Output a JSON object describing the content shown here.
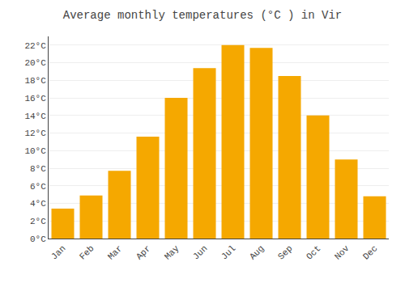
{
  "chart_data": {
    "type": "bar",
    "title": "Average monthly temperatures (°C ) in Vir",
    "categories": [
      "Jan",
      "Feb",
      "Mar",
      "Apr",
      "May",
      "Jun",
      "Jul",
      "Aug",
      "Sep",
      "Oct",
      "Nov",
      "Dec"
    ],
    "values": [
      3.4,
      4.9,
      7.7,
      11.6,
      16.0,
      19.4,
      22.0,
      21.7,
      18.5,
      14.0,
      9.0,
      4.8
    ],
    "color": "#F5A800",
    "ylim": [
      0,
      23
    ],
    "yticks": [
      {
        "value": 0,
        "label": "0°C"
      },
      {
        "value": 2,
        "label": "2°C"
      },
      {
        "value": 4,
        "label": "4°C"
      },
      {
        "value": 6,
        "label": "6°C"
      },
      {
        "value": 8,
        "label": "8°C"
      },
      {
        "value": 10,
        "label": "10°C"
      },
      {
        "value": 12,
        "label": "12°C"
      },
      {
        "value": 14,
        "label": "14°C"
      },
      {
        "value": 16,
        "label": "16°C"
      },
      {
        "value": 18,
        "label": "18°C"
      },
      {
        "value": 20,
        "label": "20°C"
      },
      {
        "value": 22,
        "label": "22°C"
      }
    ],
    "grid": true
  }
}
